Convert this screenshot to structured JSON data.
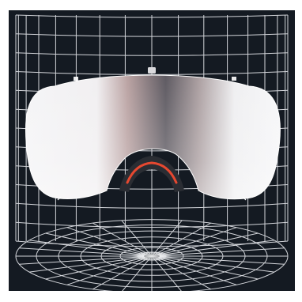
{
  "scene": {
    "subject": "goggle-lens-icon",
    "backdrop": "cylindrical-wireframe-grid",
    "colors": {
      "background": "#141a22",
      "grid": "#e8eaee",
      "lens_tint": "#3a3a44",
      "lens_clear": "#f4f4f6",
      "lens_edge_accent": "#e64830",
      "foam": "#2a2d33",
      "frame_white": "#ffffff"
    }
  }
}
